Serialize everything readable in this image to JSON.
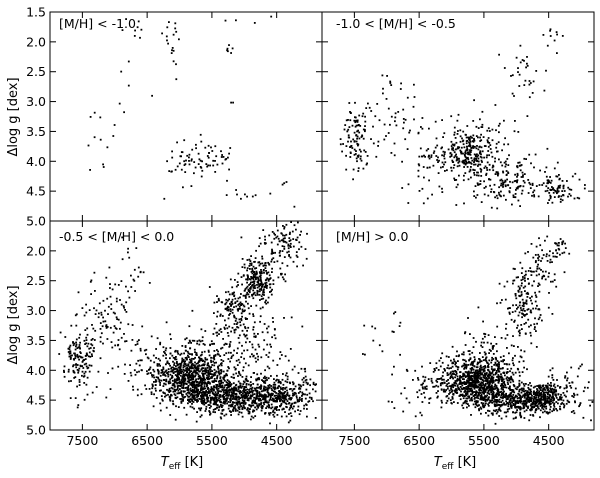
{
  "chart_data": {
    "type": "scatter",
    "layout": "2x2 panel grid, shared axes",
    "marker_color": "#000000",
    "x_axis": {
      "label_main": "T",
      "label_sub": "eff",
      "label_unit": " [K]",
      "range": [
        8000,
        3800
      ],
      "inverted": true,
      "ticks": [
        7500,
        6500,
        5500,
        4500
      ],
      "tick_labels": [
        "7500",
        "6500",
        "5500",
        "4500"
      ]
    },
    "y_axis": {
      "label_main": "Δlog g [dex]",
      "range": [
        1.5,
        5.0
      ],
      "inverted": true,
      "ticks": [
        1.5,
        2.0,
        2.5,
        3.0,
        3.5,
        4.0,
        4.5,
        5.0
      ],
      "tick_labels": [
        "1.5",
        "2.0",
        "2.5",
        "3.0",
        "3.5",
        "4.0",
        "4.5",
        "5.0"
      ],
      "lower_row_tick_labels": [
        "2.0",
        "2.5",
        "3.0",
        "3.5",
        "4.0",
        "4.5",
        "5.0"
      ]
    },
    "grid": false,
    "panels": [
      {
        "label": "[M/H] < -1.0",
        "clusters": [
          {
            "cx": 5750,
            "cy": 3.95,
            "sx": 250,
            "sy": 0.15,
            "n": 70
          },
          {
            "cx": 6100,
            "cy": 2.0,
            "sx": 80,
            "sy": 0.25,
            "n": 18
          },
          {
            "cx": 6700,
            "cy": 1.7,
            "sx": 120,
            "sy": 0.12,
            "n": 8
          },
          {
            "cx": 5250,
            "cy": 2.1,
            "sx": 40,
            "sy": 0.04,
            "n": 6
          },
          {
            "cx": 7250,
            "cy": 3.95,
            "sx": 120,
            "sy": 0.25,
            "n": 8
          },
          {
            "cx": 7300,
            "cy": 3.2,
            "sx": 50,
            "sy": 0.06,
            "n": 3
          },
          {
            "cx": 4800,
            "cy": 4.6,
            "sx": 250,
            "sy": 0.15,
            "n": 10
          },
          {
            "cx": 6700,
            "cy": 2.8,
            "sx": 200,
            "sy": 0.4,
            "n": 7
          },
          {
            "cx": 5200,
            "cy": 4.2,
            "sx": 200,
            "sy": 0.25,
            "n": 7
          },
          {
            "cx": 4900,
            "cy": 1.6,
            "sx": 300,
            "sy": 0.08,
            "n": 4
          },
          {
            "cx": 5200,
            "cy": 3.05,
            "sx": 30,
            "sy": 0.03,
            "n": 2
          },
          {
            "cx": 4350,
            "cy": 4.35,
            "sx": 30,
            "sy": 0.04,
            "n": 2
          },
          {
            "cx": 6000,
            "cy": 4.6,
            "sx": 200,
            "sy": 0.15,
            "n": 3
          }
        ]
      },
      {
        "label": "-1.0 < [M/H] < -0.5",
        "clusters": [
          {
            "cx": 5750,
            "cy": 3.85,
            "sx": 220,
            "sy": 0.2,
            "n": 260
          },
          {
            "cx": 5200,
            "cy": 4.3,
            "sx": 300,
            "sy": 0.2,
            "n": 170
          },
          {
            "cx": 4400,
            "cy": 4.45,
            "sx": 220,
            "sy": 0.15,
            "n": 90
          },
          {
            "cx": 7450,
            "cy": 3.6,
            "sx": 110,
            "sy": 0.3,
            "n": 110
          },
          {
            "cx": 6800,
            "cy": 3.3,
            "sx": 180,
            "sy": 0.4,
            "n": 50
          },
          {
            "cx": 6300,
            "cy": 3.95,
            "sx": 150,
            "sy": 0.15,
            "n": 35
          },
          {
            "cx": 4900,
            "cy": 2.45,
            "sx": 160,
            "sy": 0.25,
            "n": 30
          },
          {
            "cx": 4500,
            "cy": 1.8,
            "sx": 150,
            "sy": 0.25,
            "n": 12
          },
          {
            "cx": 5500,
            "cy": 3.5,
            "sx": 300,
            "sy": 0.2,
            "n": 30
          },
          {
            "cx": 6400,
            "cy": 4.55,
            "sx": 250,
            "sy": 0.15,
            "n": 12
          }
        ]
      },
      {
        "label": "-0.5 < [M/H] < 0.0",
        "clusters": [
          {
            "cx": 5800,
            "cy": 4.1,
            "sx": 300,
            "sy": 0.25,
            "n": 900
          },
          {
            "cx": 5100,
            "cy": 4.45,
            "sx": 400,
            "sy": 0.15,
            "n": 700
          },
          {
            "cx": 4400,
            "cy": 4.4,
            "sx": 250,
            "sy": 0.18,
            "n": 280
          },
          {
            "cx": 4800,
            "cy": 2.5,
            "sx": 130,
            "sy": 0.18,
            "n": 200
          },
          {
            "cx": 5150,
            "cy": 2.95,
            "sx": 120,
            "sy": 0.2,
            "n": 120
          },
          {
            "cx": 4500,
            "cy": 2.0,
            "sx": 200,
            "sy": 0.3,
            "n": 100
          },
          {
            "cx": 4250,
            "cy": 1.75,
            "sx": 120,
            "sy": 0.15,
            "n": 40
          },
          {
            "cx": 7550,
            "cy": 3.8,
            "sx": 120,
            "sy": 0.3,
            "n": 150
          },
          {
            "cx": 7100,
            "cy": 3.1,
            "sx": 200,
            "sy": 0.35,
            "n": 80
          },
          {
            "cx": 6800,
            "cy": 2.5,
            "sx": 150,
            "sy": 0.3,
            "n": 30
          },
          {
            "cx": 5000,
            "cy": 3.5,
            "sx": 350,
            "sy": 0.35,
            "n": 150
          },
          {
            "cx": 6600,
            "cy": 3.9,
            "sx": 300,
            "sy": 0.3,
            "n": 60
          }
        ]
      },
      {
        "label": "[M/H] > 0.0",
        "clusters": [
          {
            "cx": 5600,
            "cy": 4.2,
            "sx": 300,
            "sy": 0.2,
            "n": 900
          },
          {
            "cx": 4900,
            "cy": 4.5,
            "sx": 350,
            "sy": 0.12,
            "n": 500
          },
          {
            "cx": 4550,
            "cy": 4.4,
            "sx": 150,
            "sy": 0.1,
            "n": 150
          },
          {
            "cx": 4850,
            "cy": 2.9,
            "sx": 150,
            "sy": 0.3,
            "n": 150
          },
          {
            "cx": 4550,
            "cy": 2.2,
            "sx": 150,
            "sy": 0.25,
            "n": 60
          },
          {
            "cx": 4300,
            "cy": 1.95,
            "sx": 80,
            "sy": 0.1,
            "n": 20
          },
          {
            "cx": 5400,
            "cy": 3.7,
            "sx": 300,
            "sy": 0.3,
            "n": 100
          },
          {
            "cx": 4200,
            "cy": 4.2,
            "sx": 150,
            "sy": 0.2,
            "n": 40
          },
          {
            "cx": 6500,
            "cy": 4.3,
            "sx": 200,
            "sy": 0.2,
            "n": 50
          },
          {
            "cx": 7200,
            "cy": 3.5,
            "sx": 100,
            "sy": 0.3,
            "n": 8
          },
          {
            "cx": 6900,
            "cy": 3.3,
            "sx": 100,
            "sy": 0.2,
            "n": 6
          }
        ]
      }
    ]
  }
}
